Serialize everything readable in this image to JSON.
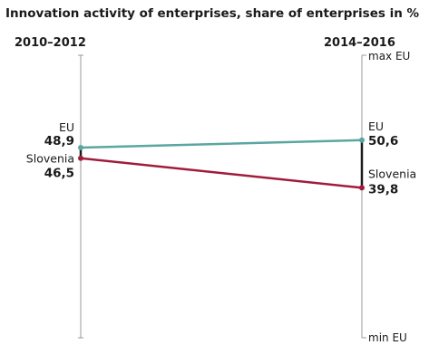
{
  "chart_data": {
    "type": "line",
    "title": "Innovation activity of enterprises, share of enterprises in %",
    "x": [
      "2010–2012",
      "2014–2016"
    ],
    "axis_labels": {
      "top": "max EU",
      "bottom": "min EU"
    },
    "series": [
      {
        "name": "EU",
        "values": [
          48.9,
          50.6
        ],
        "value_labels": [
          "48,9",
          "50,6"
        ],
        "color": "#5aa6a0"
      },
      {
        "name": "Slovenia",
        "values": [
          46.5,
          39.8
        ],
        "value_labels": [
          "46,5",
          "39,8"
        ],
        "color": "#a11c3c"
      }
    ],
    "gap_color": "#1a1a1a",
    "axis_color": "#9a9a9a"
  }
}
